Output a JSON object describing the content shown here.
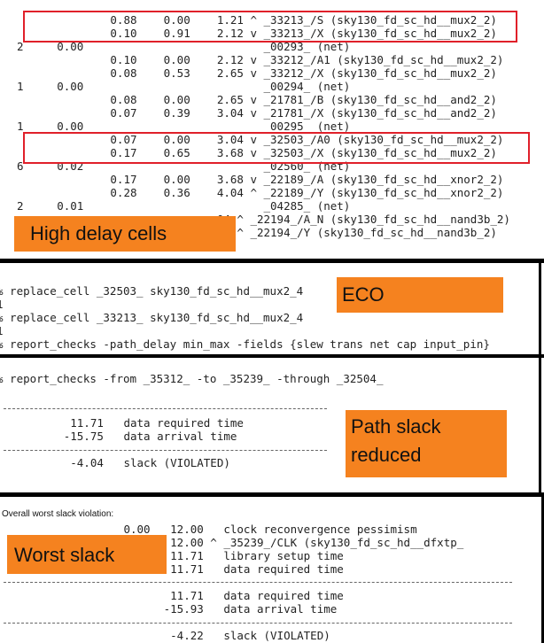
{
  "timing_panel": {
    "rows": [
      {
        "text": "                0.88    0.00    1.21 ^ _33213_/S (sky130_fd_sc_hd__mux2_2)"
      },
      {
        "text": "                0.10    0.91    2.12 v _33213_/X (sky130_fd_sc_hd__mux2_2)"
      },
      {
        "text": "  2     0.00                           _00293_ (net)"
      },
      {
        "text": "                0.10    0.00    2.12 v _33212_/A1 (sky130_fd_sc_hd__mux2_2)"
      },
      {
        "text": "                0.08    0.53    2.65 v _33212_/X (sky130_fd_sc_hd__mux2_2)"
      },
      {
        "text": "  1     0.00                           _00294_ (net)"
      },
      {
        "text": "                0.08    0.00    2.65 v _21781_/B (sky130_fd_sc_hd__and2_2)"
      },
      {
        "text": "                0.07    0.39    3.04 v _21781_/X (sky130_fd_sc_hd__and2_2)"
      },
      {
        "text": "  1     0.00                           _00295_ (net)"
      },
      {
        "text": "                0.07    0.00    3.04 v _32503_/A0 (sky130_fd_sc_hd__mux2_2)"
      },
      {
        "text": "                0.17    0.65    3.68 v _32503_/X (sky130_fd_sc_hd__mux2_2)"
      },
      {
        "text": "  6     0.02                           _02560_ (net)"
      },
      {
        "text": "                0.17    0.00    3.68 v _22189_/A (sky130_fd_sc_hd__xnor2_2)"
      },
      {
        "text": "                0.28    0.36    4.04 ^ _22189_/Y (sky130_fd_sc_hd__xnor2_2)"
      },
      {
        "text": "  2     0.01                           _04285_ (net)"
      },
      {
        "text": "                                04 ^ _22194_/A_N (sky130_fd_sc_hd__nand3b_2)"
      },
      {
        "text": "                                37 ^ _22194_/Y (sky130_fd_sc_hd__nand3b_2)"
      }
    ],
    "label": "High delay cells"
  },
  "eco_panel": {
    "lines": [
      {
        "text": "% replace_cell _32503_ sky130_fd_sc_hd__mux2_4"
      },
      {
        "text": "1"
      },
      {
        "text": "% replace_cell _33213_ sky130_fd_sc_hd__mux2_4"
      },
      {
        "text": "1"
      },
      {
        "text": "% report_checks -path_delay min_max -fields {slew trans net cap input_pin}"
      }
    ],
    "label": "ECO"
  },
  "slack_panel": {
    "command": "% report_checks -from _35312_ -to _35239_ -through _32504_",
    "rows": [
      {
        "text": "          11.71   data required time"
      },
      {
        "text": "         -15.75   data arrival time"
      }
    ],
    "slack": "          -4.04   slack (VIOLATED)",
    "label_line1": "Path slack",
    "label_line2": "reduced"
  },
  "worst_panel": {
    "title": "Overall worst slack violation:",
    "rows": [
      {
        "text": "                  0.00   12.00   clock reconvergence pessimism"
      },
      {
        "text": "                         12.00 ^ _35239_/CLK (sky130_fd_sc_hd__dfxtp_"
      },
      {
        "text": "                 -0.29   11.71   library setup time"
      },
      {
        "text": "                         11.71   data required time"
      }
    ],
    "rows2": [
      {
        "text": "                         11.71   data required time"
      },
      {
        "text": "                        -15.93   data arrival time"
      }
    ],
    "slack": "                         -4.22   slack (VIOLATED)",
    "label": "Worst slack"
  }
}
